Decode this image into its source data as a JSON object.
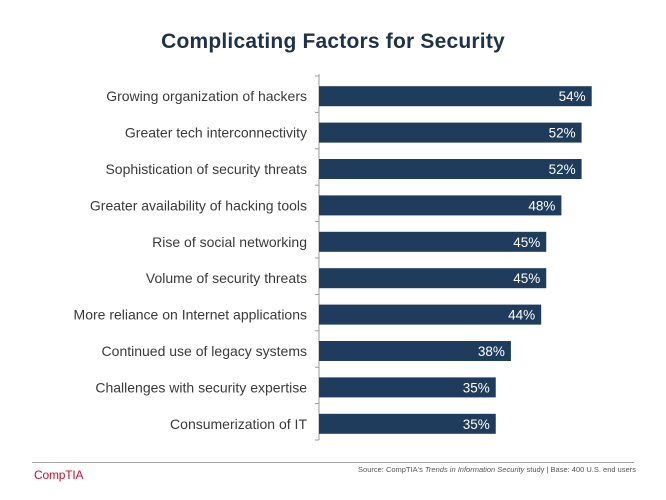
{
  "chart_data": {
    "type": "bar",
    "orientation": "horizontal",
    "title": "Complicating Factors for Security",
    "categories": [
      "Growing organization of hackers",
      "Greater tech interconnectivity",
      "Sophistication of security threats",
      "Greater availability of hacking tools",
      "Rise of social networking",
      "Volume of security threats",
      "More reliance on Internet applications",
      "Continued use of legacy systems",
      "Challenges with security expertise",
      "Consumerization of IT"
    ],
    "values": [
      54,
      52,
      52,
      48,
      45,
      45,
      44,
      38,
      35,
      35
    ],
    "value_labels": [
      "54%",
      "52%",
      "52%",
      "48%",
      "45%",
      "45%",
      "44%",
      "38%",
      "35%",
      "35%"
    ],
    "unit": "%",
    "xlim": [
      0,
      100
    ],
    "grid": false,
    "legend": "none",
    "bar_color": "#1f3c5c"
  },
  "footer": {
    "logo": "CompTIA",
    "source_prefix": "Source: CompTIA's ",
    "source_study": "Trends in Information Security",
    "source_suffix": " study | Base: 400 U.S. end users"
  }
}
